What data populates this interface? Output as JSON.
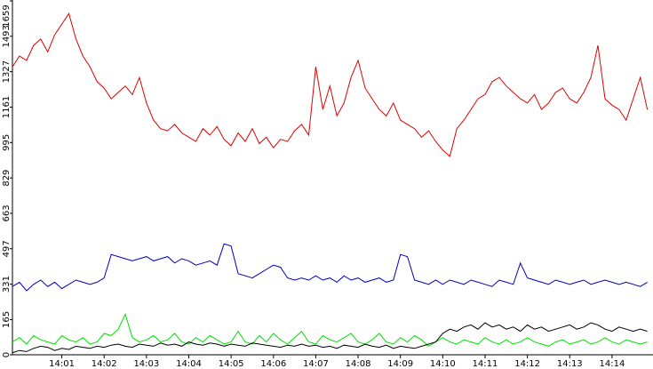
{
  "chart_data": {
    "type": "line",
    "categories": [
      null,
      null,
      null,
      null,
      null,
      null,
      null,
      "14:01",
      null,
      null,
      null,
      null,
      null,
      "14:02",
      null,
      null,
      null,
      null,
      null,
      "14:03",
      null,
      null,
      null,
      null,
      null,
      "14:04",
      null,
      null,
      null,
      null,
      null,
      "14:05",
      null,
      null,
      null,
      null,
      null,
      "14:06",
      null,
      null,
      null,
      null,
      null,
      "14:07",
      null,
      null,
      null,
      null,
      null,
      "14:08",
      null,
      null,
      null,
      null,
      null,
      "14:09",
      null,
      null,
      null,
      null,
      null,
      "14:10",
      null,
      null,
      null,
      null,
      null,
      "14:11",
      null,
      null,
      null,
      null,
      null,
      "14:12",
      null,
      null,
      null,
      null,
      null,
      "14:13",
      null,
      null,
      null,
      null,
      null,
      "14:14",
      null,
      null,
      null,
      null,
      null
    ],
    "ylim": [
      0,
      1659
    ],
    "yticks": [
      0,
      165,
      331,
      497,
      663,
      829,
      995,
      1161,
      1327,
      1493,
      1659
    ],
    "series": [
      {
        "color": "#e00000",
        "values": [
          1350,
          1400,
          1380,
          1450,
          1480,
          1420,
          1500,
          1550,
          1600,
          1480,
          1400,
          1350,
          1280,
          1250,
          1200,
          1230,
          1260,
          1220,
          1300,
          1180,
          1100,
          1060,
          1050,
          1080,
          1040,
          1020,
          1000,
          1060,
          1030,
          1070,
          1010,
          980,
          1040,
          1000,
          1060,
          990,
          1020,
          970,
          1010,
          1000,
          1050,
          1080,
          1030,
          1350,
          1150,
          1260,
          1120,
          1180,
          1300,
          1380,
          1250,
          1200,
          1150,
          1120,
          1180,
          1100,
          1080,
          1060,
          1020,
          1050,
          1000,
          960,
          930,
          1060,
          1100,
          1150,
          1200,
          1220,
          1280,
          1300,
          1260,
          1230,
          1200,
          1180,
          1220,
          1150,
          1180,
          1230,
          1250,
          1200,
          1180,
          1230,
          1300,
          1450,
          1200,
          1170,
          1150,
          1100,
          1200,
          1300,
          1150
        ]
      },
      {
        "color": "#0000c0",
        "values": [
          320,
          340,
          300,
          330,
          350,
          320,
          340,
          310,
          330,
          350,
          340,
          330,
          340,
          360,
          470,
          460,
          450,
          440,
          450,
          460,
          440,
          450,
          460,
          430,
          450,
          440,
          420,
          430,
          440,
          420,
          520,
          510,
          380,
          370,
          360,
          380,
          400,
          420,
          410,
          360,
          350,
          360,
          350,
          370,
          350,
          360,
          340,
          370,
          350,
          360,
          340,
          350,
          360,
          340,
          350,
          470,
          460,
          350,
          340,
          330,
          350,
          330,
          350,
          340,
          330,
          350,
          340,
          330,
          320,
          350,
          340,
          330,
          430,
          360,
          350,
          340,
          330,
          350,
          340,
          330,
          340,
          350,
          330,
          340,
          350,
          340,
          330,
          340,
          330,
          320,
          340
        ]
      },
      {
        "color": "#00e000",
        "values": [
          60,
          80,
          50,
          90,
          70,
          60,
          50,
          90,
          70,
          60,
          80,
          50,
          60,
          100,
          90,
          120,
          190,
          80,
          60,
          70,
          90,
          60,
          70,
          100,
          60,
          50,
          80,
          60,
          90,
          70,
          50,
          60,
          110,
          60,
          50,
          90,
          60,
          100,
          70,
          50,
          80,
          110,
          60,
          50,
          90,
          70,
          60,
          80,
          100,
          60,
          50,
          70,
          100,
          60,
          50,
          80,
          60,
          90,
          70,
          40,
          60,
          80,
          60,
          50,
          70,
          60,
          50,
          80,
          60,
          50,
          70,
          50,
          60,
          80,
          60,
          50,
          40,
          60,
          70,
          50,
          60,
          70,
          50,
          60,
          80,
          60,
          50,
          70,
          60,
          50,
          60
        ]
      },
      {
        "color": "#000000",
        "values": [
          10,
          20,
          15,
          30,
          40,
          35,
          20,
          30,
          25,
          40,
          35,
          30,
          40,
          35,
          45,
          50,
          40,
          35,
          50,
          45,
          40,
          55,
          45,
          50,
          40,
          60,
          50,
          45,
          55,
          50,
          40,
          50,
          45,
          40,
          55,
          50,
          45,
          40,
          35,
          45,
          40,
          50,
          40,
          45,
          35,
          40,
          30,
          45,
          40,
          35,
          50,
          40,
          35,
          45,
          30,
          40,
          35,
          30,
          40,
          50,
          60,
          100,
          120,
          110,
          130,
          140,
          120,
          150,
          130,
          140,
          120,
          130,
          110,
          140,
          120,
          130,
          110,
          120,
          130,
          140,
          120,
          130,
          150,
          140,
          120,
          110,
          130,
          120,
          110,
          120,
          110
        ]
      }
    ]
  }
}
